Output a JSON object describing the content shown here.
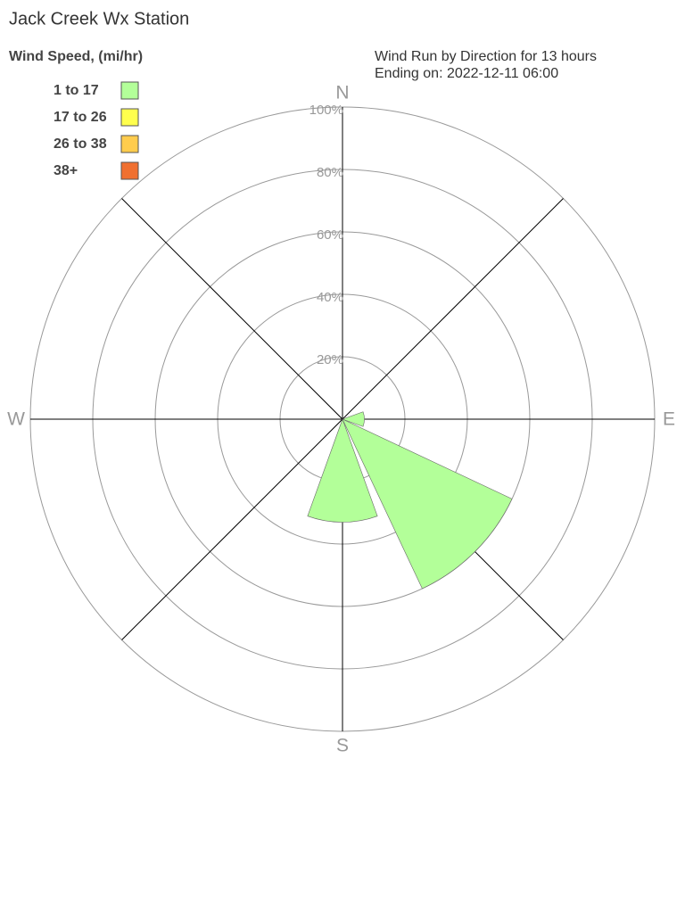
{
  "chart_data": {
    "type": "windrose",
    "title": "Jack Creek Wx Station",
    "subtitle": [
      "Wind Run by Direction for 13 hours",
      "Ending on: 2022-12-11 06:00"
    ],
    "legend_title": "Wind Speed, (mi/hr)",
    "categories": [
      "N",
      null,
      "E",
      null,
      "S",
      null,
      "W",
      null
    ],
    "series": [
      {
        "name": "1 to 17",
        "color": "#b3ff99",
        "values": [
          0,
          0,
          7,
          60,
          33,
          0,
          0,
          0
        ]
      },
      {
        "name": "17 to 26",
        "color": "#ffff4d",
        "values": [
          0,
          0,
          0,
          0,
          0,
          0,
          0,
          0
        ]
      },
      {
        "name": "26 to 38",
        "color": "#ffcc4d",
        "values": [
          0,
          0,
          0,
          0,
          0,
          0,
          0,
          0
        ]
      },
      {
        "name": "38+",
        "color": "#f07030",
        "values": [
          0,
          0,
          0,
          0,
          0,
          0,
          0,
          0
        ]
      }
    ],
    "ylim": [
      0,
      100
    ],
    "yticks": [
      {
        "value": 20,
        "label": "20%"
      },
      {
        "value": 40,
        "label": "40%"
      },
      {
        "value": 60,
        "label": "60%"
      },
      {
        "value": 80,
        "label": "80%"
      },
      {
        "value": 100,
        "label": "100%"
      }
    ]
  }
}
